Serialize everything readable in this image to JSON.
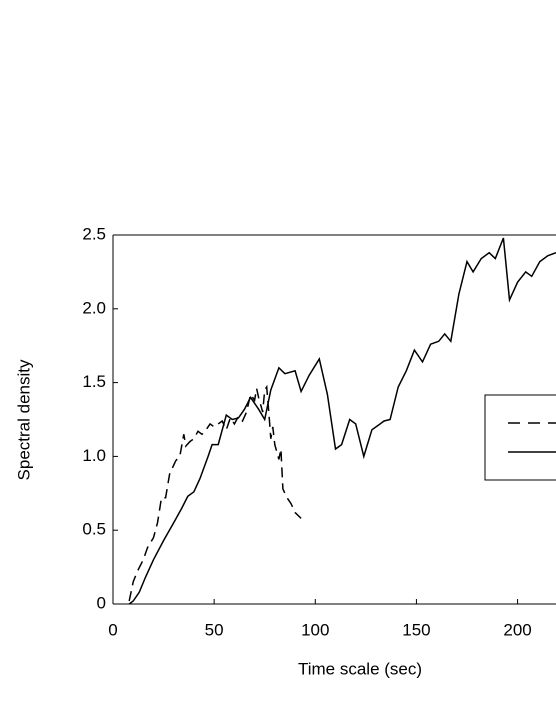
{
  "chart_data": {
    "type": "line",
    "x_label": "Time scale (sec)",
    "y_label": "Spectral density",
    "xlim": [
      0,
      219
    ],
    "ylim": [
      0,
      2.5
    ],
    "xticks": [
      0,
      50,
      100,
      150,
      200
    ],
    "yticks": [
      0,
      0.5,
      {
        "value": 1,
        "label": "1.0"
      },
      1.5,
      {
        "value": 2,
        "label": "2.0"
      },
      2.5
    ],
    "series": [
      {
        "color": "#000000",
        "line_style": "dashed",
        "x": [
          8,
          10,
          12,
          15,
          17,
          20,
          22,
          24,
          26,
          28,
          31,
          33,
          35,
          36,
          38,
          40,
          42,
          44,
          46,
          48,
          50,
          54,
          56,
          58,
          60,
          62,
          64,
          66,
          68,
          70,
          71,
          72,
          74,
          75,
          76,
          77,
          78,
          79,
          80,
          82,
          83,
          84,
          86,
          88,
          90,
          93
        ],
        "values": [
          0.02,
          0.15,
          0.22,
          0.3,
          0.38,
          0.45,
          0.55,
          0.72,
          0.72,
          0.88,
          0.97,
          1.0,
          1.15,
          1.07,
          1.1,
          1.12,
          1.17,
          1.15,
          1.18,
          1.22,
          1.2,
          1.24,
          1.18,
          1.26,
          1.22,
          1.27,
          1.24,
          1.3,
          1.42,
          1.38,
          1.46,
          1.4,
          1.3,
          1.45,
          1.47,
          1.3,
          1.12,
          1.2,
          1.08,
          0.98,
          1.05,
          0.78,
          0.72,
          0.68,
          0.62,
          0.58
        ]
      },
      {
        "color": "#000000",
        "line_style": "solid",
        "x": [
          8,
          10,
          13,
          16,
          20,
          25,
          30,
          34,
          37,
          40,
          43,
          47,
          49,
          52,
          56,
          59,
          62,
          65,
          68,
          72,
          75,
          78,
          82,
          85,
          90,
          93,
          97,
          102,
          106,
          110,
          113,
          117,
          120,
          124,
          128,
          134,
          137,
          141,
          145,
          149,
          153,
          157,
          161,
          164,
          167,
          171,
          175,
          178,
          182,
          186,
          189,
          193,
          196,
          200,
          204,
          207,
          211,
          215,
          219
        ],
        "values": [
          0,
          0.02,
          0.08,
          0.18,
          0.3,
          0.43,
          0.55,
          0.65,
          0.73,
          0.76,
          0.85,
          1.0,
          1.08,
          1.08,
          1.28,
          1.25,
          1.26,
          1.32,
          1.4,
          1.32,
          1.25,
          1.45,
          1.6,
          1.56,
          1.58,
          1.44,
          1.55,
          1.66,
          1.42,
          1.05,
          1.08,
          1.25,
          1.22,
          1.0,
          1.18,
          1.24,
          1.25,
          1.47,
          1.58,
          1.72,
          1.64,
          1.76,
          1.78,
          1.83,
          1.78,
          2.1,
          2.32,
          2.25,
          2.34,
          2.38,
          2.34,
          2.48,
          2.06,
          2.18,
          2.25,
          2.22,
          2.32,
          2.36,
          2.38
        ]
      }
    ]
  }
}
